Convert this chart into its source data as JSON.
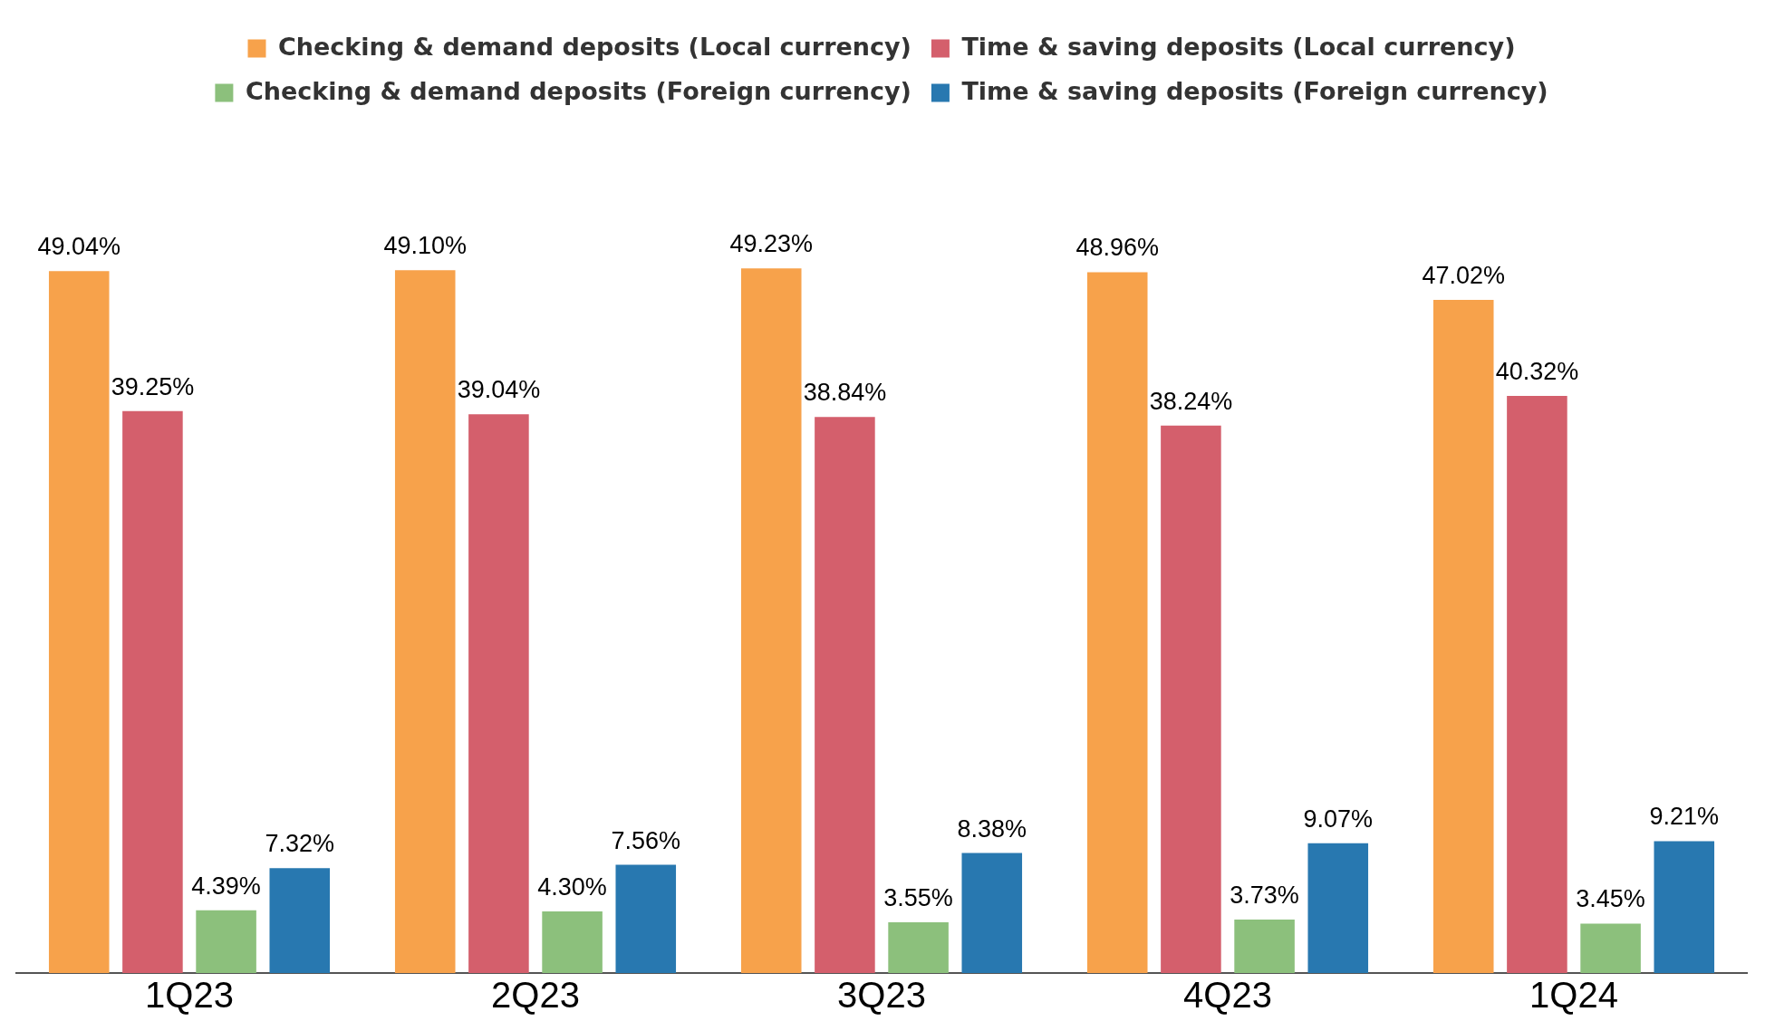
{
  "chart_data": {
    "type": "bar",
    "categories": [
      "1Q23",
      "2Q23",
      "3Q23",
      "4Q23",
      "1Q24"
    ],
    "legend": "top",
    "grid": false,
    "tick_labels": "x",
    "series": [
      {
        "name": "Checking & demand deposits (Local currency)",
        "color": "#f7a24b",
        "values": [
          49.04,
          49.1,
          49.23,
          48.96,
          47.02
        ],
        "value_labels": [
          "49.04%",
          "49.10%",
          "49.23%",
          "48.96%",
          "47.02%"
        ]
      },
      {
        "name": "Time & saving deposits (Local currency)",
        "color": "#d45f6c",
        "values": [
          39.25,
          39.04,
          38.84,
          38.24,
          40.32
        ],
        "value_labels": [
          "39.25%",
          "39.04%",
          "38.84%",
          "38.24%",
          "40.32%"
        ]
      },
      {
        "name": "Checking & demand deposits (Foreign currency)",
        "color": "#8cc07c",
        "values": [
          4.39,
          4.3,
          3.55,
          3.73,
          3.45
        ],
        "value_labels": [
          "4.39%",
          "4.30%",
          "3.55%",
          "3.73%",
          "3.45%"
        ]
      },
      {
        "name": "Time & saving deposits (Foreign currency)",
        "color": "#2878b0",
        "values": [
          7.32,
          7.56,
          8.38,
          9.07,
          9.21
        ],
        "value_labels": [
          "7.32%",
          "7.56%",
          "8.38%",
          "9.07%",
          "9.21%"
        ]
      }
    ]
  }
}
